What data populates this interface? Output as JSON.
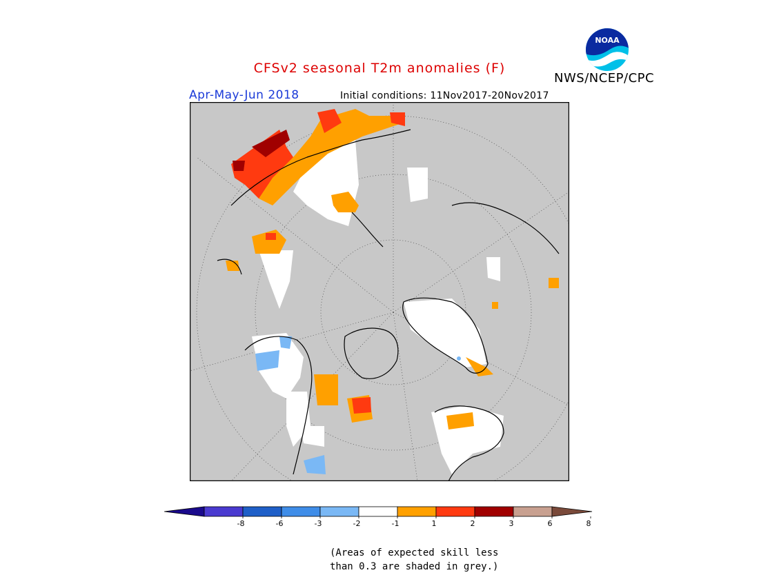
{
  "header": {
    "title": "CFSv2 seasonal T2m anomalies (F)",
    "title_color": "#dd0000",
    "period": "Apr-May-Jun 2018",
    "period_color": "#1a3ad8",
    "initial_conditions": "Initial conditions: 11Nov2017-20Nov2017",
    "agency": "NWS/NCEP/CPC"
  },
  "logo": {
    "name": "noaa-logo",
    "text": "NOAA"
  },
  "map": {
    "projection": "north-polar-stereographic",
    "mask_color": "#c8c8c8",
    "background_color": "#c8c8c8",
    "frame_color": "#000000"
  },
  "legend": {
    "ticks": [
      "-8",
      "-6",
      "-3",
      "-2",
      "-1",
      "1",
      "2",
      "3",
      "6",
      "8"
    ],
    "colors": [
      "#1a0a8c",
      "#4a3ad0",
      "#1f5fc8",
      "#3f8de8",
      "#7ab8f5",
      "#ffffff",
      "#ffa000",
      "#ff3a10",
      "#a00000",
      "#c8a090",
      "#7a4a3a"
    ]
  },
  "footnote": {
    "line1": "(Areas of expected skill less",
    "line2": "than 0.3 are shaded in grey.)"
  }
}
